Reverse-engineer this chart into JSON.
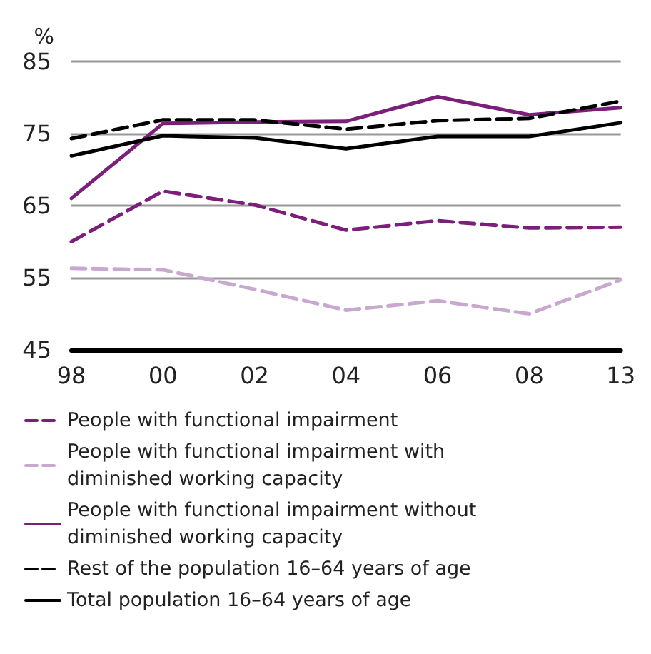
{
  "chart_data": {
    "type": "line",
    "ylabel": "%",
    "categories": [
      "98",
      "00",
      "02",
      "04",
      "06",
      "08",
      "13"
    ],
    "ylim": [
      45,
      85
    ],
    "yticks": [
      45,
      55,
      65,
      75,
      85
    ],
    "grid": "y",
    "legend": "bottom",
    "marker": "none",
    "series": [
      {
        "name": "People with functional impairment",
        "color": "#7b1f7b",
        "line_style": "dashed",
        "values": [
          60.0,
          67.0,
          65.1,
          61.6,
          62.9,
          61.9,
          62.0
        ]
      },
      {
        "name": "People with functional impairment with diminished working capacity",
        "color": "#c8a8cf",
        "line_style": "dashed",
        "values": [
          56.3,
          56.1,
          53.4,
          50.5,
          51.8,
          50.0,
          54.7
        ]
      },
      {
        "name": "People with functional impairment without diminished working capacity",
        "color": "#7b1f7b",
        "line_style": "solid",
        "values": [
          66.0,
          76.4,
          76.6,
          76.7,
          80.1,
          77.6,
          78.6
        ]
      },
      {
        "name": "Rest of the population 16–64 years of age",
        "color": "#000000",
        "line_style": "dashed",
        "values": [
          74.3,
          76.9,
          76.9,
          75.6,
          76.8,
          77.1,
          79.5
        ]
      },
      {
        "name": "Total population 16–64 years of age",
        "color": "#000000",
        "line_style": "solid",
        "values": [
          71.9,
          74.7,
          74.4,
          72.9,
          74.6,
          74.6,
          76.5
        ]
      }
    ]
  }
}
